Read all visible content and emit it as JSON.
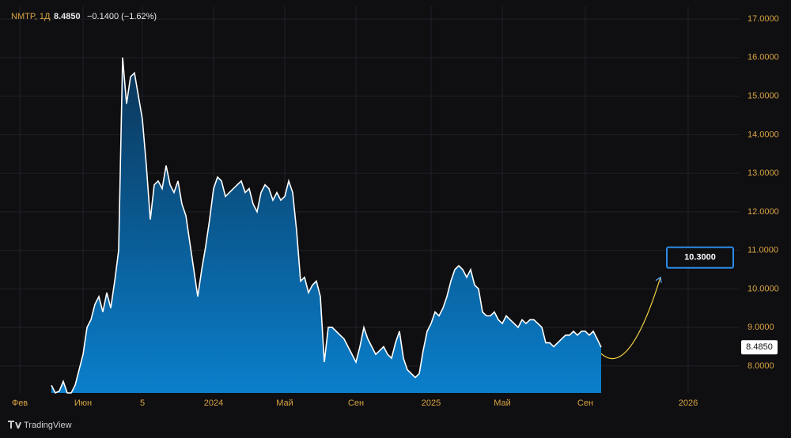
{
  "header": {
    "symbol": "NMTP, 1Д",
    "price": "8.4850",
    "change": "−0.1400 (−1.62%)"
  },
  "branding": "TradingView",
  "chart_data": {
    "type": "area",
    "values": [
      7.5,
      7.3,
      7.35,
      7.6,
      7.3,
      7.3,
      7.5,
      7.9,
      8.3,
      9.0,
      9.2,
      9.6,
      9.8,
      9.4,
      9.9,
      9.5,
      10.2,
      11.0,
      16.0,
      14.8,
      15.5,
      15.6,
      15.0,
      14.4,
      13.2,
      11.8,
      12.7,
      12.8,
      12.6,
      13.2,
      12.7,
      12.5,
      12.8,
      12.2,
      11.9,
      11.2,
      10.5,
      9.8,
      10.5,
      11.1,
      11.8,
      12.6,
      12.9,
      12.8,
      12.4,
      12.5,
      12.6,
      12.7,
      12.8,
      12.5,
      12.6,
      12.2,
      12.0,
      12.5,
      12.7,
      12.6,
      12.3,
      12.5,
      12.3,
      12.4,
      12.8,
      12.5,
      11.5,
      10.2,
      10.3,
      9.9,
      10.1,
      10.2,
      9.8,
      8.1,
      9.0,
      9.0,
      8.9,
      8.8,
      8.7,
      8.5,
      8.3,
      8.1,
      8.5,
      9.0,
      8.7,
      8.5,
      8.3,
      8.4,
      8.5,
      8.3,
      8.2,
      8.6,
      8.9,
      8.2,
      7.9,
      7.8,
      7.7,
      7.8,
      8.4,
      8.9,
      9.1,
      9.4,
      9.3,
      9.5,
      9.8,
      10.2,
      10.5,
      10.6,
      10.5,
      10.3,
      10.5,
      10.1,
      10.0,
      9.4,
      9.3,
      9.3,
      9.4,
      9.2,
      9.1,
      9.3,
      9.2,
      9.1,
      9.0,
      9.2,
      9.1,
      9.2,
      9.2,
      9.1,
      9.0,
      8.6,
      8.6,
      8.5,
      8.6,
      8.7,
      8.8,
      8.8,
      8.9,
      8.8,
      8.9,
      8.9,
      8.8,
      8.9,
      8.7,
      8.485
    ],
    "color": "#ffffff",
    "area_colors": [
      "#0b3456",
      "#0a7fcc"
    ],
    "xlim": [
      -13,
      174
    ],
    "xticks": [
      {
        "value": -8,
        "label": "Фев"
      },
      {
        "value": 8,
        "label": "Июн"
      },
      {
        "value": 23,
        "label": "5"
      },
      {
        "value": 41,
        "label": "2024"
      },
      {
        "value": 59,
        "label": "Май"
      },
      {
        "value": 77,
        "label": "Сен"
      },
      {
        "value": 96,
        "label": "2025"
      },
      {
        "value": 114,
        "label": "Май"
      },
      {
        "value": 135,
        "label": "Сен"
      },
      {
        "value": 161,
        "label": "2026"
      }
    ],
    "ylim": [
      7.3,
      17.33
    ],
    "yticks": [
      {
        "value": 8,
        "label": "8.0000"
      },
      {
        "value": 9,
        "label": "9.0000"
      },
      {
        "value": 10,
        "label": "10.0000"
      },
      {
        "value": 11,
        "label": "11.0000"
      },
      {
        "value": 12,
        "label": "12.0000"
      },
      {
        "value": 13,
        "label": "13.0000"
      },
      {
        "value": 14,
        "label": "14.0000"
      },
      {
        "value": 15,
        "label": "15.0000"
      },
      {
        "value": 16,
        "label": "16.0000"
      },
      {
        "value": 17,
        "label": "17.0000"
      }
    ],
    "grid": true,
    "last_price": {
      "value": 8.485,
      "label": "8.4850"
    },
    "target": {
      "value": 10.3,
      "label": "10.3000"
    }
  }
}
